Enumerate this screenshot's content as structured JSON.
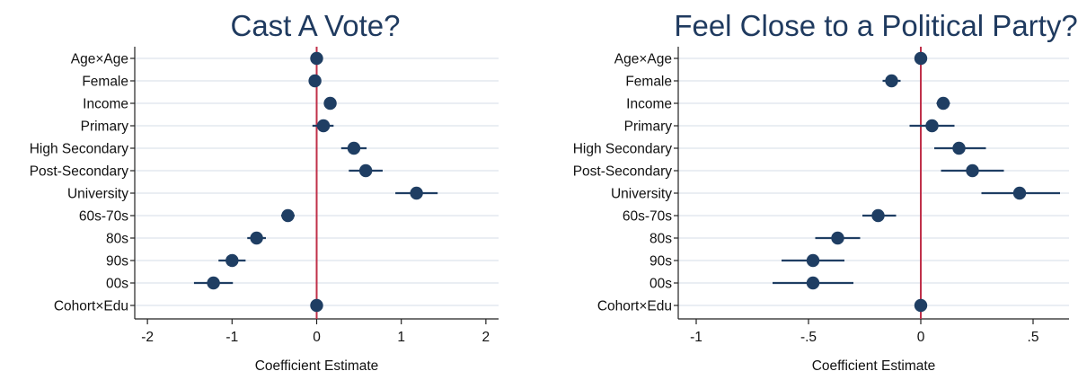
{
  "colors": {
    "point": "#1f3e63",
    "ci": "#1f3e63",
    "reference_line": "#c0304a",
    "grid": "#e3e9ef",
    "title": "#1f3a5f"
  },
  "chart_data": [
    {
      "type": "scatter",
      "subtype": "coefficient-plot",
      "title": "Cast A Vote?",
      "xlabel": "Coefficient Estimate",
      "ylabel": "",
      "xlim": [
        -2.15,
        2.15
      ],
      "xticks": [
        -2,
        -1,
        0,
        1,
        2
      ],
      "xtick_labels": [
        "-2",
        "-1",
        "0",
        "1",
        "2"
      ],
      "reference_line": 0,
      "grid": "horizontal",
      "categories": [
        "Age×Age",
        "Female",
        "Income",
        "Primary",
        "High Secondary",
        "Post-Secondary",
        "University",
        "60s-70s",
        "80s",
        "90s",
        "00s",
        "Cohort×Edu"
      ],
      "estimates": [
        0.0,
        -0.02,
        0.16,
        0.08,
        0.44,
        0.58,
        1.18,
        -0.34,
        -0.71,
        -1.0,
        -1.22,
        0.0
      ],
      "ci_low": [
        -0.03,
        -0.07,
        0.11,
        -0.05,
        0.29,
        0.38,
        0.93,
        -0.42,
        -0.82,
        -1.16,
        -1.45,
        -0.02
      ],
      "ci_high": [
        0.03,
        0.03,
        0.21,
        0.2,
        0.59,
        0.78,
        1.43,
        -0.26,
        -0.6,
        -0.84,
        -0.99,
        0.02
      ]
    },
    {
      "type": "scatter",
      "subtype": "coefficient-plot",
      "title": "Feel Close to a Political Party?",
      "xlabel": "Coefficient Estimate",
      "ylabel": "",
      "xlim": [
        -1.08,
        0.66
      ],
      "xticks": [
        -1,
        -0.5,
        0,
        0.5
      ],
      "xtick_labels": [
        "-1",
        "-.5",
        "0",
        ".5"
      ],
      "reference_line": 0,
      "grid": "horizontal",
      "categories": [
        "Age×Age",
        "Female",
        "Income",
        "Primary",
        "High Secondary",
        "Post-Secondary",
        "University",
        "60s-70s",
        "80s",
        "90s",
        "00s",
        "Cohort×Edu"
      ],
      "estimates": [
        0.0,
        -0.13,
        0.1,
        0.05,
        0.17,
        0.23,
        0.44,
        -0.19,
        -0.37,
        -0.48,
        -0.48,
        0.0
      ],
      "ci_low": [
        -0.01,
        -0.17,
        0.07,
        -0.05,
        0.06,
        0.09,
        0.27,
        -0.26,
        -0.47,
        -0.62,
        -0.66,
        -0.01
      ],
      "ci_high": [
        0.01,
        -0.09,
        0.13,
        0.15,
        0.29,
        0.37,
        0.62,
        -0.11,
        -0.27,
        -0.34,
        -0.3,
        0.01
      ]
    }
  ]
}
